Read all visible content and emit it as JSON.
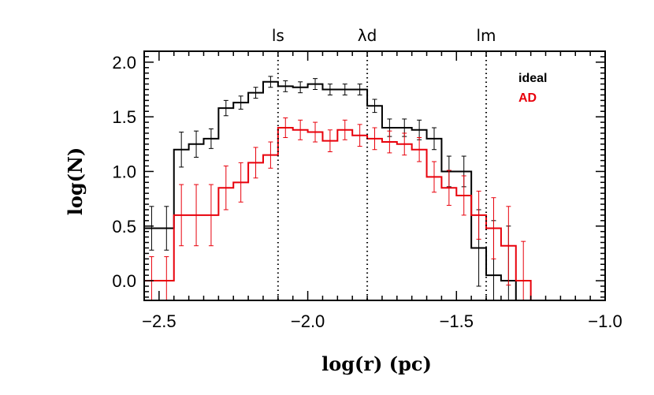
{
  "chart_data": {
    "type": "line",
    "title": "",
    "xlabel": "log(r) (pc)",
    "ylabel": "log(N)",
    "xlim": [
      -2.55,
      -1.0
    ],
    "ylim": [
      -0.18,
      2.1
    ],
    "x_ticks": [
      -2.5,
      -2.0,
      -1.5,
      -1.0
    ],
    "x_tick_labels": [
      "−2.5",
      "−2.0",
      "−1.5",
      "−1.0"
    ],
    "y_ticks": [
      0.0,
      0.5,
      1.0,
      1.5,
      2.0
    ],
    "y_tick_labels": [
      "0.0",
      "0.5",
      "1.0",
      "1.5",
      "2.0"
    ],
    "grid": false,
    "legend_position": "top-right",
    "vertical_markers": [
      {
        "label": "ls",
        "x": -2.1
      },
      {
        "label": "λd",
        "x": -1.8
      },
      {
        "label": "lm",
        "x": -1.4
      }
    ],
    "bin_edges": [
      -2.55,
      -2.5,
      -2.45,
      -2.4,
      -2.35,
      -2.3,
      -2.25,
      -2.2,
      -2.15,
      -2.1,
      -2.05,
      -2.0,
      -1.95,
      -1.9,
      -1.85,
      -1.8,
      -1.75,
      -1.7,
      -1.65,
      -1.6,
      -1.55,
      -1.5,
      -1.45,
      -1.4,
      -1.35,
      -1.3,
      -1.25
    ],
    "series": [
      {
        "name": "ideal",
        "color": "#000000",
        "values": [
          0.48,
          0.48,
          1.2,
          1.25,
          1.3,
          1.58,
          1.63,
          1.72,
          1.82,
          1.78,
          1.77,
          1.8,
          1.75,
          1.75,
          1.75,
          1.6,
          1.4,
          1.4,
          1.38,
          1.3,
          1.0,
          1.0,
          0.3,
          0.05,
          0.0,
          null
        ],
        "errors": [
          0.2,
          0.2,
          0.16,
          0.12,
          0.09,
          0.07,
          0.06,
          0.05,
          0.05,
          0.05,
          0.05,
          0.05,
          0.05,
          0.05,
          0.05,
          0.06,
          0.08,
          0.08,
          0.09,
          0.1,
          0.14,
          0.14,
          0.35,
          0.5,
          0.5,
          null
        ]
      },
      {
        "name": "AD",
        "color": "#e8000b",
        "values": [
          0.0,
          0.0,
          0.6,
          0.6,
          0.6,
          0.85,
          0.9,
          1.08,
          1.15,
          1.4,
          1.38,
          1.36,
          1.28,
          1.38,
          1.33,
          1.3,
          1.27,
          1.25,
          1.2,
          0.95,
          0.85,
          0.78,
          0.6,
          0.48,
          0.32,
          0.0
        ],
        "errors": [
          0.22,
          0.22,
          0.28,
          0.28,
          0.28,
          0.2,
          0.18,
          0.14,
          0.12,
          0.09,
          0.09,
          0.09,
          0.1,
          0.09,
          0.1,
          0.1,
          0.1,
          0.1,
          0.11,
          0.14,
          0.16,
          0.18,
          0.22,
          0.28,
          0.36,
          0.36
        ]
      }
    ]
  }
}
